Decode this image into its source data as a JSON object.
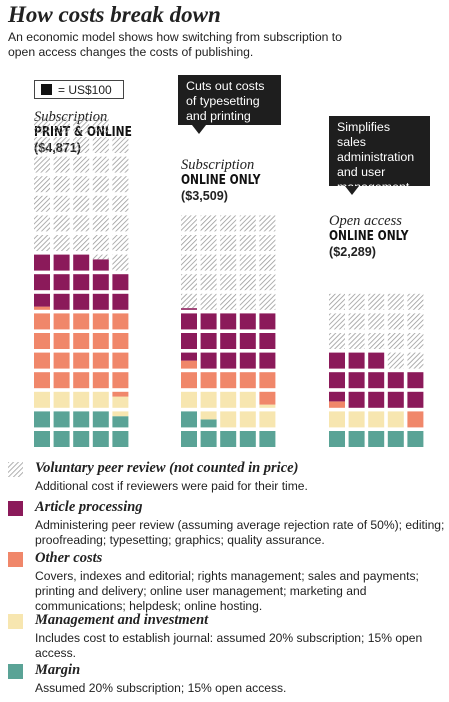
{
  "title": "How costs break down",
  "subtitle": "An economic model shows how switching from subscription to open access changes the costs of publishing.",
  "key_label": "= US$100",
  "callouts": [
    {
      "text": "Cuts out costs of typesetting and printing"
    },
    {
      "text": "Simplifies sales administration and user management"
    }
  ],
  "colors": {
    "peer_review": "#9a9a9a",
    "article_processing": "#8b1a5a",
    "other_costs": "#f0876a",
    "management_investment": "#f7e6b0",
    "margin": "#5aa396",
    "unit": "#111111"
  },
  "chart_data": {
    "type": "waffle",
    "unit_value": 100,
    "unit_label": "US$100",
    "categories": [
      "Voluntary peer review",
      "Article processing",
      "Other costs",
      "Management and investment",
      "Margin"
    ],
    "columns": [
      {
        "mode": "Subscription",
        "type": "PRINT & ONLINE",
        "total_label": "($4,871)",
        "total": 4871,
        "series": [
          {
            "name": "Voluntary peer review",
            "squares": 35
          },
          {
            "name": "Article processing",
            "squares": 13.5
          },
          {
            "name": "Other costs",
            "squares": 20.5
          },
          {
            "name": "Management and investment",
            "squares": 5
          },
          {
            "name": "Margin",
            "squares": 9.7
          }
        ]
      },
      {
        "mode": "Subscription",
        "type": "ONLINE ONLY",
        "total_label": "($3,509)",
        "total": 3509,
        "series": [
          {
            "name": "Voluntary peer review",
            "squares": 24
          },
          {
            "name": "Article processing",
            "squares": 14.6
          },
          {
            "name": "Other costs",
            "squares": 6.3
          },
          {
            "name": "Management and investment",
            "squares": 7.7
          },
          {
            "name": "Margin",
            "squares": 6.5
          }
        ]
      },
      {
        "mode": "Open access",
        "type": "ONLINE ONLY",
        "total_label": "($2,289)",
        "total": 2289,
        "series": [
          {
            "name": "Voluntary peer review",
            "squares": 17
          },
          {
            "name": "Article processing",
            "squares": 12.6
          },
          {
            "name": "Other costs",
            "squares": 1.4
          },
          {
            "name": "Management and investment",
            "squares": 4
          },
          {
            "name": "Margin",
            "squares": 5
          }
        ]
      }
    ]
  },
  "legend": [
    {
      "name": "Voluntary peer review (not counted in price)",
      "desc": "Additional cost if reviewers were paid for their time."
    },
    {
      "name": "Article processing",
      "desc": "Administering peer review (assuming average rejection rate of 50%); editing; proofreading; typesetting; graphics; quality assurance."
    },
    {
      "name": "Other costs",
      "desc": "Covers, indexes and editorial; rights management; sales and payments; printing and delivery; online user management; marketing and communications; helpdesk; online hosting."
    },
    {
      "name": "Management and investment",
      "desc": "Includes cost to establish journal: assumed 20% subscription; 15% open access."
    },
    {
      "name": "Margin",
      "desc": "Assumed 20% subscription; 15% open access."
    }
  ]
}
